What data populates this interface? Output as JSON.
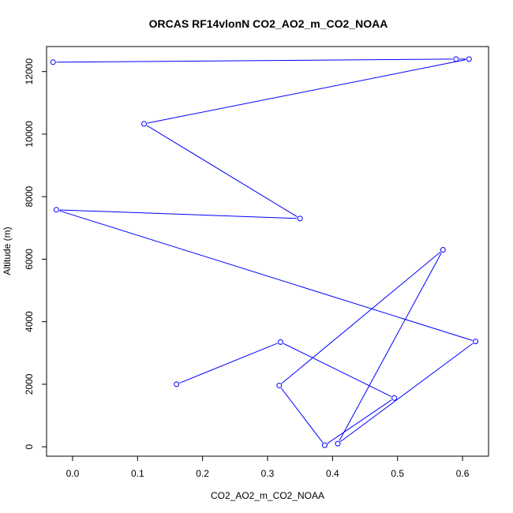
{
  "chart_data": {
    "type": "line",
    "title": "ORCAS RF14vlonN CO2_AO2_m_CO2_NOAA",
    "xlabel": "CO2_AO2_m_CO2_NOAA",
    "ylabel": "Altitude (m)",
    "xlim": [
      -0.04,
      0.64
    ],
    "ylim": [
      -300,
      12800
    ],
    "x_ticks": [
      0.0,
      0.1,
      0.2,
      0.3,
      0.4,
      0.5,
      0.6
    ],
    "x_tick_labels": [
      "0.0",
      "0.1",
      "0.2",
      "0.3",
      "0.4",
      "0.5",
      "0.6"
    ],
    "y_ticks": [
      0,
      2000,
      4000,
      6000,
      8000,
      10000,
      12000
    ],
    "y_tick_labels": [
      "0",
      "2000",
      "4000",
      "6000",
      "8000",
      "10000",
      "12000"
    ],
    "grid": false,
    "line_color": "#0000ff",
    "series": [
      {
        "x": [
          -0.03,
          0.59,
          0.61,
          0.11,
          0.35,
          -0.025,
          0.62,
          0.408,
          0.57,
          0.318,
          0.388,
          0.495,
          0.32,
          0.16
        ],
        "y": [
          12300,
          12400,
          12400,
          10330,
          7300,
          7580,
          3370,
          100,
          6300,
          1960,
          50,
          1560,
          3350,
          2000
        ]
      }
    ]
  }
}
